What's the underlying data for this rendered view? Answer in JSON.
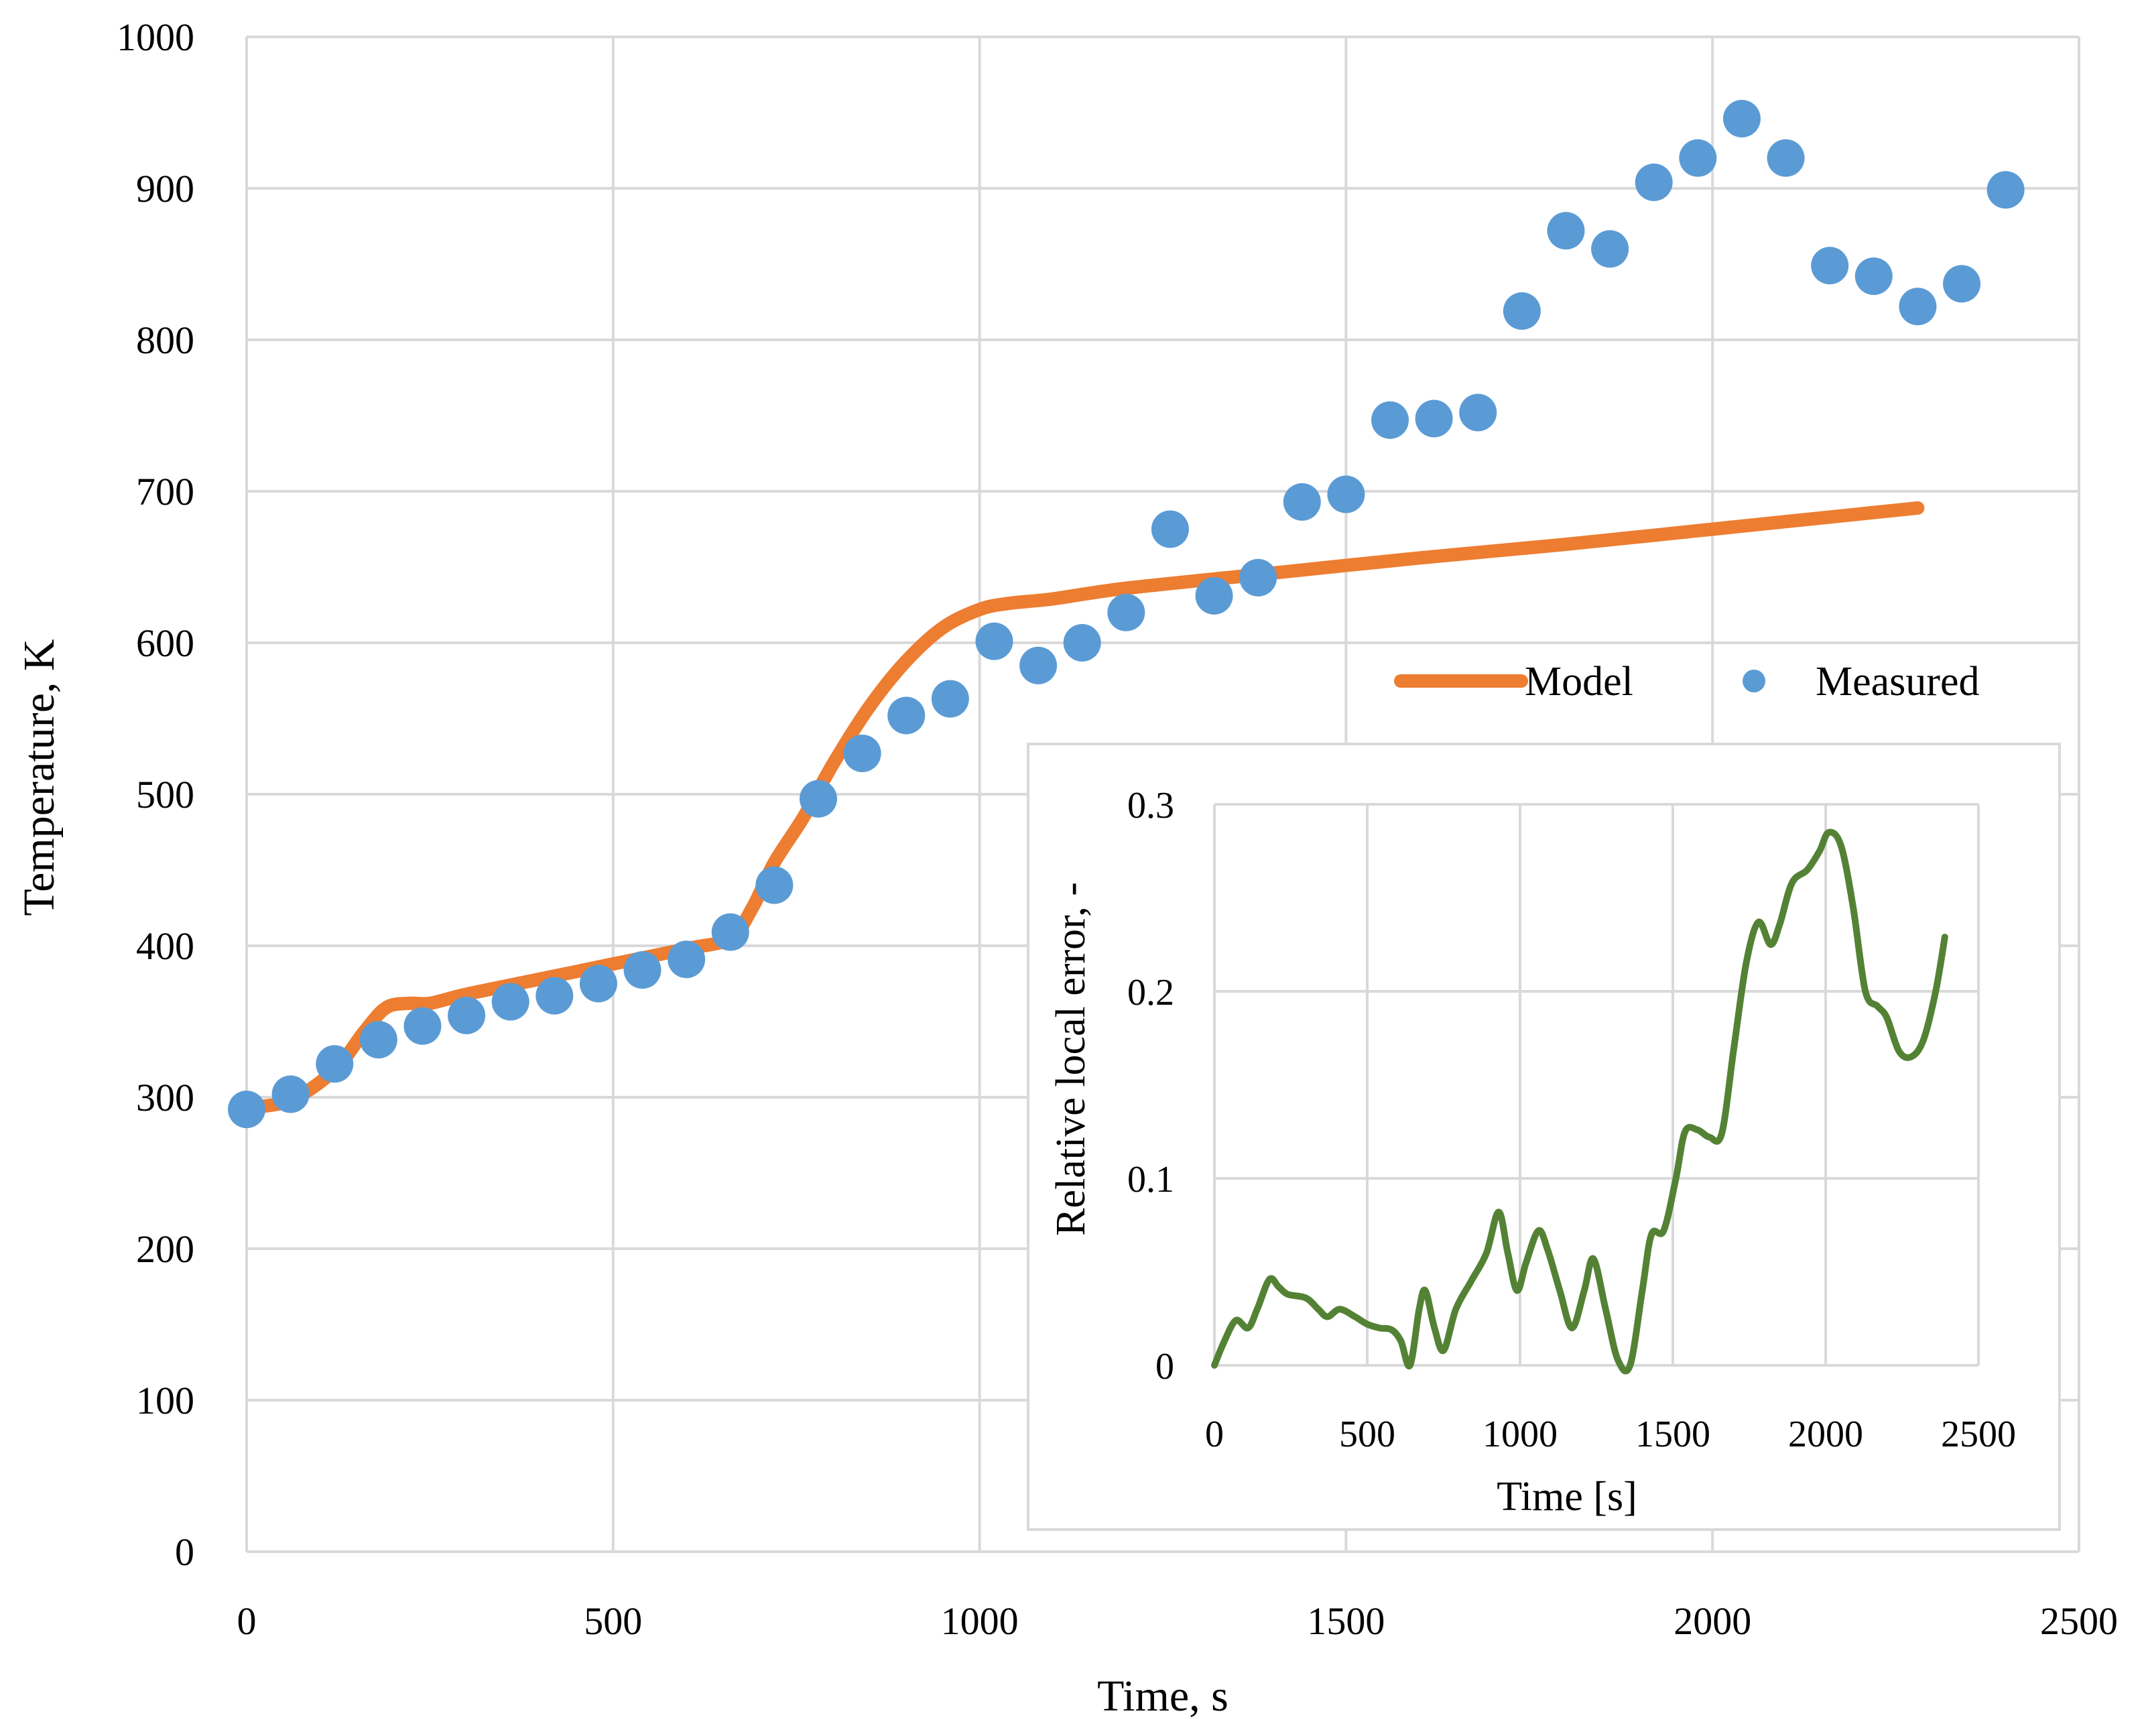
{
  "chart_data": [
    {
      "type": "line+scatter",
      "title": "",
      "xlabel": "Time, s",
      "ylabel": "Temperature, K",
      "xlim": [
        0,
        2500
      ],
      "ylim": [
        0,
        1000
      ],
      "x_ticks": [
        0,
        500,
        1000,
        1500,
        2000,
        2500
      ],
      "y_ticks": [
        0,
        100,
        200,
        300,
        400,
        500,
        600,
        700,
        800,
        900,
        1000
      ],
      "grid": true,
      "legend": {
        "placement": "right",
        "entries": [
          "Model",
          "Measured"
        ]
      },
      "series": [
        {
          "name": "Model",
          "kind": "line",
          "color": "#ED7D31",
          "points": [
            [
              0,
              293
            ],
            [
              60,
              298
            ],
            [
              120,
              318
            ],
            [
              160,
              343
            ],
            [
              190,
              359
            ],
            [
              220,
              362
            ],
            [
              250,
              362
            ],
            [
              300,
              368
            ],
            [
              400,
              378
            ],
            [
              500,
              388
            ],
            [
              600,
              398
            ],
            [
              660,
              405
            ],
            [
              690,
              425
            ],
            [
              720,
              455
            ],
            [
              760,
              485
            ],
            [
              800,
              520
            ],
            [
              850,
              558
            ],
            [
              900,
              588
            ],
            [
              950,
              610
            ],
            [
              1000,
              622
            ],
            [
              1040,
              626
            ],
            [
              1100,
              629
            ],
            [
              1200,
              636
            ],
            [
              1400,
              646
            ],
            [
              1600,
              656
            ],
            [
              1800,
              665
            ],
            [
              2000,
              675
            ],
            [
              2200,
              685
            ],
            [
              2280,
              689
            ]
          ]
        },
        {
          "name": "Measured",
          "kind": "scatter",
          "color": "#5B9BD5",
          "points": [
            [
              0,
              292
            ],
            [
              60,
              302
            ],
            [
              120,
              322
            ],
            [
              180,
              338
            ],
            [
              240,
              347
            ],
            [
              300,
              354
            ],
            [
              360,
              363
            ],
            [
              420,
              367
            ],
            [
              480,
              375
            ],
            [
              540,
              384
            ],
            [
              600,
              391
            ],
            [
              660,
              409
            ],
            [
              720,
              440
            ],
            [
              780,
              497
            ],
            [
              840,
              527
            ],
            [
              900,
              552
            ],
            [
              960,
              563
            ],
            [
              1020,
              601
            ],
            [
              1080,
              585
            ],
            [
              1140,
              600
            ],
            [
              1200,
              620
            ],
            [
              1260,
              675
            ],
            [
              1320,
              631
            ],
            [
              1380,
              643
            ],
            [
              1440,
              693
            ],
            [
              1500,
              698
            ],
            [
              1560,
              747
            ],
            [
              1620,
              748
            ],
            [
              1680,
              752
            ],
            [
              1740,
              819
            ],
            [
              1800,
              872
            ],
            [
              1860,
              860
            ],
            [
              1920,
              904
            ],
            [
              1980,
              920
            ],
            [
              2040,
              946
            ],
            [
              2100,
              920
            ],
            [
              2160,
              849
            ],
            [
              2220,
              842
            ],
            [
              2280,
              822
            ],
            [
              2340,
              837
            ],
            [
              2400,
              899
            ]
          ]
        }
      ]
    },
    {
      "type": "line",
      "title": "",
      "xlabel": "Time [s]",
      "ylabel": "Relative local error, -",
      "xlim": [
        0,
        2500
      ],
      "ylim": [
        0,
        0.3
      ],
      "x_ticks": [
        0,
        500,
        1000,
        1500,
        2000,
        2500
      ],
      "y_ticks": [
        0,
        0.1,
        0.2,
        0.3
      ],
      "y_tick_labels": [
        "0",
        "0.1",
        "0.2",
        "0.3"
      ],
      "grid": true,
      "series": [
        {
          "name": "Relative local error",
          "color": "#548235",
          "points": [
            [
              0,
              0.0
            ],
            [
              30,
              0.012
            ],
            [
              70,
              0.024
            ],
            [
              110,
              0.02
            ],
            [
              140,
              0.03
            ],
            [
              180,
              0.046
            ],
            [
              210,
              0.042
            ],
            [
              240,
              0.038
            ],
            [
              300,
              0.036
            ],
            [
              340,
              0.03
            ],
            [
              370,
              0.026
            ],
            [
              410,
              0.03
            ],
            [
              460,
              0.026
            ],
            [
              500,
              0.022
            ],
            [
              540,
              0.02
            ],
            [
              580,
              0.019
            ],
            [
              610,
              0.013
            ],
            [
              640,
              0.0
            ],
            [
              670,
              0.03
            ],
            [
              690,
              0.04
            ],
            [
              720,
              0.02
            ],
            [
              750,
              0.008
            ],
            [
              790,
              0.03
            ],
            [
              840,
              0.045
            ],
            [
              890,
              0.06
            ],
            [
              930,
              0.082
            ],
            [
              960,
              0.06
            ],
            [
              990,
              0.04
            ],
            [
              1020,
              0.055
            ],
            [
              1060,
              0.072
            ],
            [
              1090,
              0.062
            ],
            [
              1130,
              0.04
            ],
            [
              1170,
              0.02
            ],
            [
              1210,
              0.04
            ],
            [
              1240,
              0.057
            ],
            [
              1280,
              0.03
            ],
            [
              1320,
              0.003
            ],
            [
              1360,
              0.0
            ],
            [
              1400,
              0.04
            ],
            [
              1430,
              0.07
            ],
            [
              1470,
              0.072
            ],
            [
              1510,
              0.1
            ],
            [
              1540,
              0.125
            ],
            [
              1580,
              0.126
            ],
            [
              1620,
              0.122
            ],
            [
              1660,
              0.124
            ],
            [
              1700,
              0.17
            ],
            [
              1740,
              0.215
            ],
            [
              1780,
              0.237
            ],
            [
              1820,
              0.225
            ],
            [
              1850,
              0.236
            ],
            [
              1890,
              0.258
            ],
            [
              1940,
              0.265
            ],
            [
              1980,
              0.275
            ],
            [
              2010,
              0.285
            ],
            [
              2050,
              0.278
            ],
            [
              2090,
              0.245
            ],
            [
              2130,
              0.2
            ],
            [
              2170,
              0.192
            ],
            [
              2200,
              0.186
            ],
            [
              2240,
              0.168
            ],
            [
              2280,
              0.165
            ],
            [
              2320,
              0.174
            ],
            [
              2360,
              0.2
            ],
            [
              2390,
              0.229
            ]
          ]
        }
      ]
    }
  ]
}
